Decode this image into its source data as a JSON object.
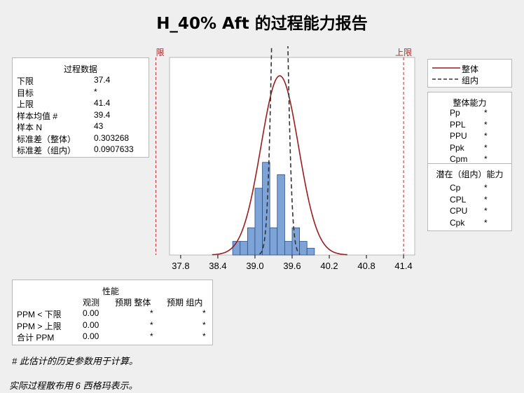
{
  "title": "H_40% Aft 的过程能力报告",
  "process_data": {
    "heading": "过程数据",
    "rows": [
      {
        "label": "下限",
        "value": "37.4"
      },
      {
        "label": "目标",
        "value": "*"
      },
      {
        "label": "上限",
        "value": "41.4"
      },
      {
        "label": "样本均值 #",
        "value": "39.4"
      },
      {
        "label": "样本 N",
        "value": "43"
      },
      {
        "label": "标准差（整体）",
        "value": "0.303268"
      },
      {
        "label": "标准差（组内）",
        "value": "0.0907633"
      }
    ]
  },
  "legend": {
    "overall": "整体",
    "within": "组内",
    "overall_color": "#9b1c1c",
    "within_color": "#333333"
  },
  "overall_capability": {
    "heading": "整体能力",
    "rows": [
      {
        "label": "Pp",
        "value": "*"
      },
      {
        "label": "PPL",
        "value": "*"
      },
      {
        "label": "PPU",
        "value": "*"
      },
      {
        "label": "Ppk",
        "value": "*"
      },
      {
        "label": "Cpm",
        "value": "*"
      }
    ]
  },
  "potential_capability": {
    "heading": "潜在（组内）能力",
    "rows": [
      {
        "label": "Cp",
        "value": "*"
      },
      {
        "label": "CPL",
        "value": "*"
      },
      {
        "label": "CPU",
        "value": "*"
      },
      {
        "label": "Cpk",
        "value": "*"
      }
    ]
  },
  "performance": {
    "heading": "性能",
    "columns": [
      "观测",
      "预期 整体",
      "预期 组内"
    ],
    "rows": [
      {
        "label": "PPM < 下限",
        "values": [
          "0.00",
          "*",
          "*"
        ]
      },
      {
        "label": "PPM > 上限",
        "values": [
          "0.00",
          "*",
          "*"
        ]
      },
      {
        "label": "合计 PPM",
        "values": [
          "0.00",
          "*",
          "*"
        ]
      }
    ]
  },
  "footnotes": {
    "hist_note": "# 此估计的历史参数用于计算。",
    "spread_note": "实际过程散布用 6 西格玛表示。"
  },
  "chart_data": {
    "type": "bar",
    "subtype": "histogram with fitted normal curves",
    "lsl": 37.4,
    "usl": 41.4,
    "lsl_label": "下限",
    "usl_label": "上限",
    "spec_line_color": "#c0282d",
    "bar_color": "#7ea3d6",
    "bar_edge": "#2b4f87",
    "xlim": [
      37.4,
      41.5
    ],
    "ylim": [
      0,
      1.45
    ],
    "xticks": [
      "37.8",
      "38.4",
      "39.0",
      "39.6",
      "40.2",
      "40.8",
      "41.4"
    ],
    "xtick_values": [
      37.8,
      38.4,
      39.0,
      39.6,
      40.2,
      40.8,
      41.4
    ],
    "bin_width": 0.12,
    "bins": [
      {
        "x": 38.7,
        "density": 0.1
      },
      {
        "x": 38.82,
        "density": 0.1
      },
      {
        "x": 38.94,
        "density": 0.2
      },
      {
        "x": 39.06,
        "density": 0.49
      },
      {
        "x": 39.18,
        "density": 0.68
      },
      {
        "x": 39.3,
        "density": 0.2
      },
      {
        "x": 39.42,
        "density": 0.59
      },
      {
        "x": 39.54,
        "density": 0.1
      },
      {
        "x": 39.66,
        "density": 0.2
      },
      {
        "x": 39.78,
        "density": 0.1
      },
      {
        "x": 39.9,
        "density": 0.05
      }
    ],
    "mean": 39.4,
    "sd_overall": 0.303268,
    "sd_within": 0.0907633,
    "grid": false
  }
}
